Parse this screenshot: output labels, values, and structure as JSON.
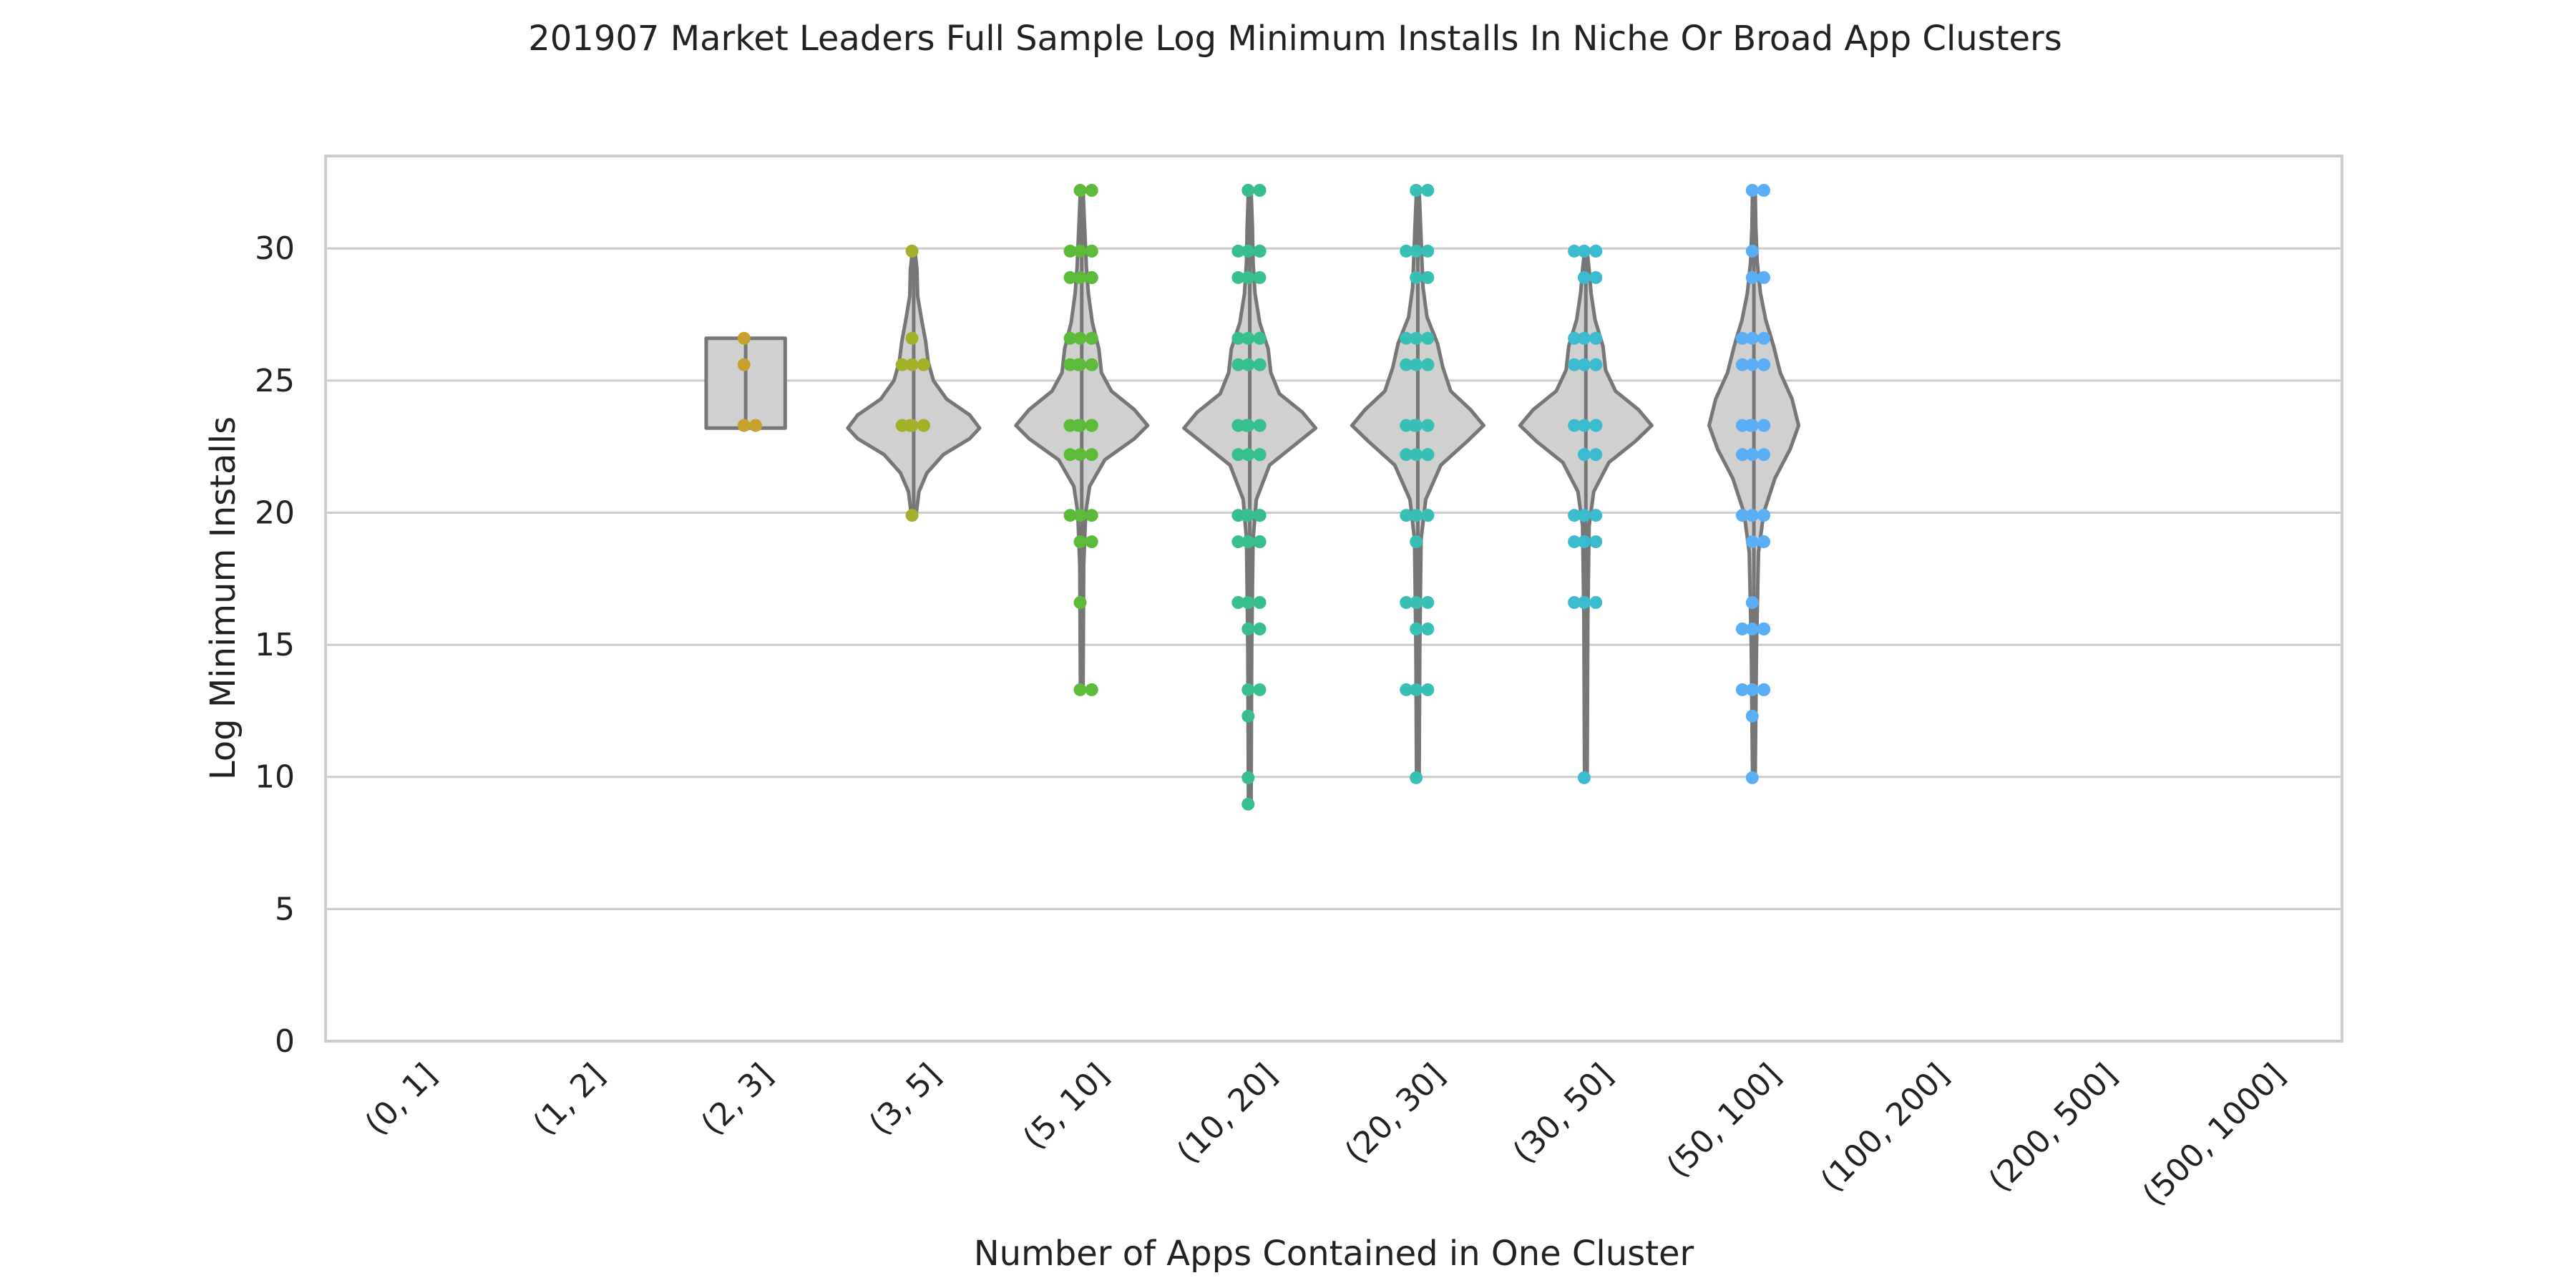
{
  "chart_data": {
    "type": "violin",
    "title": "201907 Market Leaders Full Sample Log Minimum Installs In Niche Or Broad App Clusters",
    "xlabel": "Number of Apps Contained in One Cluster",
    "ylabel": "Log Minimum Installs",
    "ylim": [
      0,
      33.5
    ],
    "yticks": [
      0,
      5,
      10,
      15,
      20,
      25,
      30
    ],
    "grid": true,
    "categories": [
      "(0, 1]",
      "(1, 2]",
      "(2, 3]",
      "(3, 5]",
      "(5, 10]",
      "(10, 20]",
      "(20, 30]",
      "(30, 50]",
      "(50, 100]",
      "(100, 200]",
      "(200, 500]",
      "(500, 1000]"
    ],
    "colors": [
      "#e76f5a",
      "#dc7f3a",
      "#c8a02c",
      "#a3b029",
      "#5cbc3a",
      "#37bf8e",
      "#38c0b6",
      "#3bbbd0",
      "#5aaef5",
      "#8f9cf5",
      "#c88bea",
      "#ee7fc2"
    ],
    "groups": [
      {
        "category": "(0, 1]",
        "points": []
      },
      {
        "category": "(1, 2]",
        "points": []
      },
      {
        "category": "(2, 3]",
        "points": [
          26.6,
          25.6,
          23.3,
          23.3
        ],
        "violin": {
          "min": 23.2,
          "max": 26.6,
          "profile": [
            [
              23.2,
              0.6
            ],
            [
              26.6,
              0.6
            ]
          ]
        }
      },
      {
        "category": "(3, 5]",
        "points": [
          29.9,
          26.6,
          25.6,
          25.6,
          25.6,
          23.3,
          23.3,
          23.3,
          23.3,
          23.3,
          19.9
        ],
        "violin": {
          "min": 20.0,
          "max": 29.9,
          "profile": [
            [
              20.0,
              0.04
            ],
            [
              20.8,
              0.08
            ],
            [
              21.5,
              0.2
            ],
            [
              22.2,
              0.45
            ],
            [
              22.8,
              0.85
            ],
            [
              23.2,
              1.0
            ],
            [
              23.7,
              0.85
            ],
            [
              24.3,
              0.5
            ],
            [
              25.0,
              0.3
            ],
            [
              25.7,
              0.22
            ],
            [
              26.5,
              0.18
            ],
            [
              27.3,
              0.12
            ],
            [
              28.2,
              0.06
            ],
            [
              29.2,
              0.05
            ],
            [
              29.9,
              0.02
            ]
          ]
        }
      },
      {
        "category": "(5, 10]",
        "points": [
          32.2,
          32.2,
          29.9,
          29.9,
          29.9,
          29.9,
          28.9,
          28.9,
          28.9,
          28.9,
          26.6,
          26.6,
          26.6,
          26.6,
          25.6,
          25.6,
          25.6,
          25.6,
          25.6,
          23.3,
          23.3,
          23.3,
          23.3,
          23.3,
          23.3,
          22.2,
          22.2,
          22.2,
          19.9,
          19.9,
          19.9,
          18.9,
          18.9,
          16.6,
          13.3,
          13.3
        ],
        "violin": {
          "min": 13.3,
          "max": 32.2,
          "profile": [
            [
              13.3,
              0.02
            ],
            [
              18.0,
              0.03
            ],
            [
              20.0,
              0.06
            ],
            [
              21.0,
              0.12
            ],
            [
              22.0,
              0.35
            ],
            [
              22.8,
              0.8
            ],
            [
              23.3,
              1.0
            ],
            [
              23.9,
              0.8
            ],
            [
              24.6,
              0.45
            ],
            [
              25.3,
              0.3
            ],
            [
              26.2,
              0.26
            ],
            [
              27.2,
              0.16
            ],
            [
              28.3,
              0.1
            ],
            [
              29.3,
              0.07
            ],
            [
              30.5,
              0.05
            ],
            [
              32.2,
              0.02
            ]
          ]
        }
      },
      {
        "category": "(10, 20]",
        "points": [
          32.2,
          32.2,
          29.9,
          29.9,
          29.9,
          29.9,
          28.9,
          28.9,
          28.9,
          26.6,
          26.6,
          26.6,
          26.6,
          25.6,
          25.6,
          25.6,
          25.6,
          23.3,
          23.3,
          23.3,
          23.3,
          23.3,
          22.2,
          22.2,
          22.2,
          22.2,
          19.9,
          19.9,
          19.9,
          19.9,
          19.9,
          18.9,
          18.9,
          18.9,
          18.9,
          16.6,
          16.6,
          16.6,
          15.6,
          15.6,
          13.3,
          13.3,
          12.3,
          9.97,
          8.97
        ],
        "violin": {
          "min": 9.0,
          "max": 32.2,
          "profile": [
            [
              9.0,
              0.02
            ],
            [
              15.0,
              0.03
            ],
            [
              19.0,
              0.05
            ],
            [
              20.5,
              0.1
            ],
            [
              21.8,
              0.3
            ],
            [
              22.7,
              0.75
            ],
            [
              23.2,
              1.0
            ],
            [
              23.8,
              0.8
            ],
            [
              24.5,
              0.45
            ],
            [
              25.3,
              0.32
            ],
            [
              26.2,
              0.28
            ],
            [
              27.2,
              0.15
            ],
            [
              28.3,
              0.08
            ],
            [
              29.5,
              0.05
            ],
            [
              30.8,
              0.04
            ],
            [
              32.2,
              0.02
            ]
          ]
        }
      },
      {
        "category": "(20, 30]",
        "points": [
          32.2,
          32.2,
          29.9,
          29.9,
          29.9,
          28.9,
          28.9,
          26.6,
          26.6,
          26.6,
          26.6,
          25.6,
          25.6,
          25.6,
          25.6,
          23.3,
          23.3,
          23.3,
          23.3,
          23.3,
          22.2,
          22.2,
          22.2,
          22.2,
          19.9,
          19.9,
          19.9,
          19.9,
          18.9,
          16.6,
          16.6,
          16.6,
          15.6,
          15.6,
          13.3,
          13.3,
          13.3,
          9.97
        ],
        "violin": {
          "min": 10.0,
          "max": 32.2,
          "profile": [
            [
              10.0,
              0.02
            ],
            [
              15.0,
              0.03
            ],
            [
              19.0,
              0.05
            ],
            [
              20.5,
              0.12
            ],
            [
              21.8,
              0.35
            ],
            [
              22.7,
              0.75
            ],
            [
              23.3,
              1.0
            ],
            [
              23.9,
              0.8
            ],
            [
              24.6,
              0.5
            ],
            [
              25.5,
              0.38
            ],
            [
              26.4,
              0.3
            ],
            [
              27.4,
              0.14
            ],
            [
              28.5,
              0.08
            ],
            [
              29.7,
              0.06
            ],
            [
              31.0,
              0.04
            ],
            [
              32.2,
              0.02
            ]
          ]
        }
      },
      {
        "category": "(30, 50]",
        "points": [
          29.9,
          29.9,
          29.9,
          29.9,
          28.9,
          28.9,
          26.6,
          26.6,
          26.6,
          26.6,
          25.6,
          25.6,
          25.6,
          25.6,
          23.3,
          23.3,
          23.3,
          23.3,
          22.2,
          22.2,
          19.9,
          19.9,
          19.9,
          18.9,
          18.9,
          18.9,
          16.6,
          16.6,
          16.6,
          9.97
        ],
        "violin": {
          "min": 10.0,
          "max": 29.9,
          "profile": [
            [
              10.0,
              0.02
            ],
            [
              16.0,
              0.03
            ],
            [
              19.5,
              0.05
            ],
            [
              20.8,
              0.12
            ],
            [
              21.9,
              0.35
            ],
            [
              22.7,
              0.75
            ],
            [
              23.3,
              1.0
            ],
            [
              23.9,
              0.8
            ],
            [
              24.6,
              0.45
            ],
            [
              25.4,
              0.3
            ],
            [
              26.3,
              0.26
            ],
            [
              27.3,
              0.14
            ],
            [
              28.3,
              0.08
            ],
            [
              29.2,
              0.05
            ],
            [
              29.9,
              0.02
            ]
          ]
        }
      },
      {
        "category": "(50, 100]",
        "points": [
          32.2,
          32.2,
          29.9,
          28.9,
          28.9,
          26.6,
          26.6,
          26.6,
          25.6,
          25.6,
          25.6,
          25.6,
          23.3,
          23.3,
          23.3,
          23.3,
          23.3,
          22.2,
          22.2,
          22.2,
          19.9,
          19.9,
          19.9,
          18.9,
          18.9,
          16.6,
          15.6,
          15.6,
          15.6,
          15.6,
          13.3,
          13.3,
          13.3,
          13.3,
          12.3,
          9.97
        ],
        "violin": {
          "min": 10.0,
          "max": 32.2,
          "profile": [
            [
              10.0,
              0.02
            ],
            [
              15.0,
              0.04
            ],
            [
              18.5,
              0.07
            ],
            [
              20.0,
              0.15
            ],
            [
              21.3,
              0.32
            ],
            [
              22.4,
              0.55
            ],
            [
              23.3,
              0.68
            ],
            [
              24.3,
              0.58
            ],
            [
              25.3,
              0.4
            ],
            [
              26.3,
              0.3
            ],
            [
              27.3,
              0.18
            ],
            [
              28.3,
              0.1
            ],
            [
              29.5,
              0.05
            ],
            [
              30.8,
              0.03
            ],
            [
              32.2,
              0.02
            ]
          ]
        }
      },
      {
        "category": "(100, 200]",
        "points": []
      },
      {
        "category": "(200, 500]",
        "points": []
      },
      {
        "category": "(500, 1000]",
        "points": []
      }
    ]
  }
}
